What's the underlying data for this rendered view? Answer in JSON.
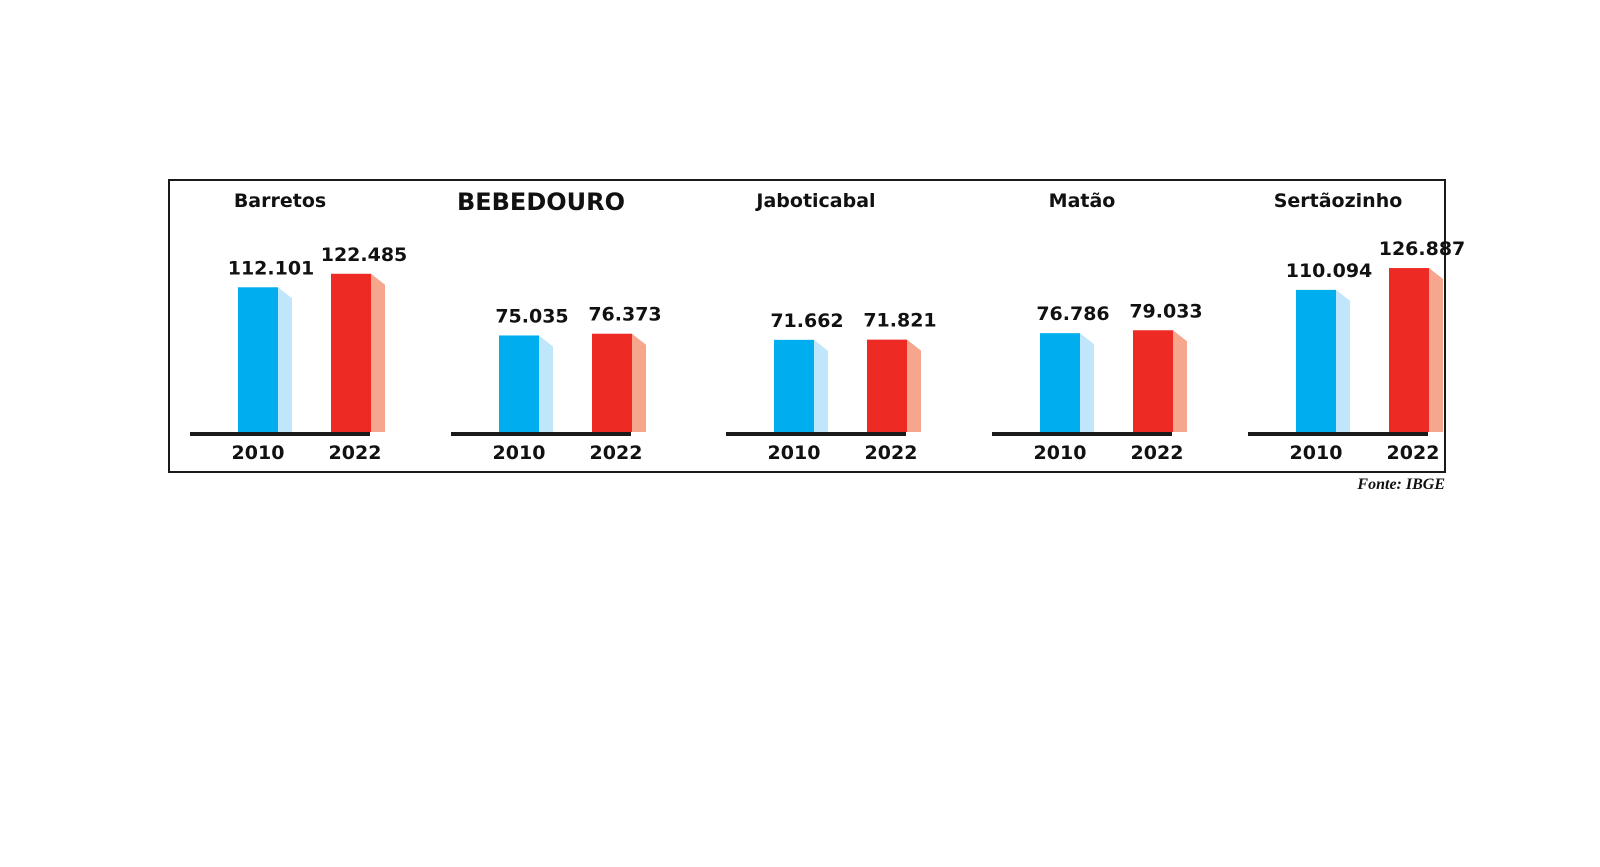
{
  "chart_data": {
    "type": "bar",
    "categories": [
      "2010",
      "2022"
    ],
    "groups": [
      {
        "title": "Barretos",
        "highlight": false,
        "values": [
          112101,
          122485
        ],
        "labels": [
          "112.101",
          "122.485"
        ]
      },
      {
        "title": "BEBEDOURO",
        "highlight": true,
        "values": [
          75035,
          76373
        ],
        "labels": [
          "75.035",
          "76.373"
        ]
      },
      {
        "title": "Jaboticabal",
        "highlight": false,
        "values": [
          71662,
          71821
        ],
        "labels": [
          "71.662",
          "71.821"
        ]
      },
      {
        "title": "Matão",
        "highlight": false,
        "values": [
          76786,
          79033
        ],
        "labels": [
          "76.786",
          "79.033"
        ]
      },
      {
        "title": "Sertãozinho",
        "highlight": false,
        "values": [
          110094,
          126887
        ],
        "labels": [
          "110.094",
          "126.887"
        ]
      }
    ],
    "source": "Fonte: IBGE",
    "colors": {
      "2010": "#00aeef",
      "2010_side": "#bfe6fb",
      "2022": "#ed2a24",
      "2022_side": "#f6a68d",
      "baseline": "#1a1a1a",
      "frame": "#1a1a1a"
    }
  }
}
